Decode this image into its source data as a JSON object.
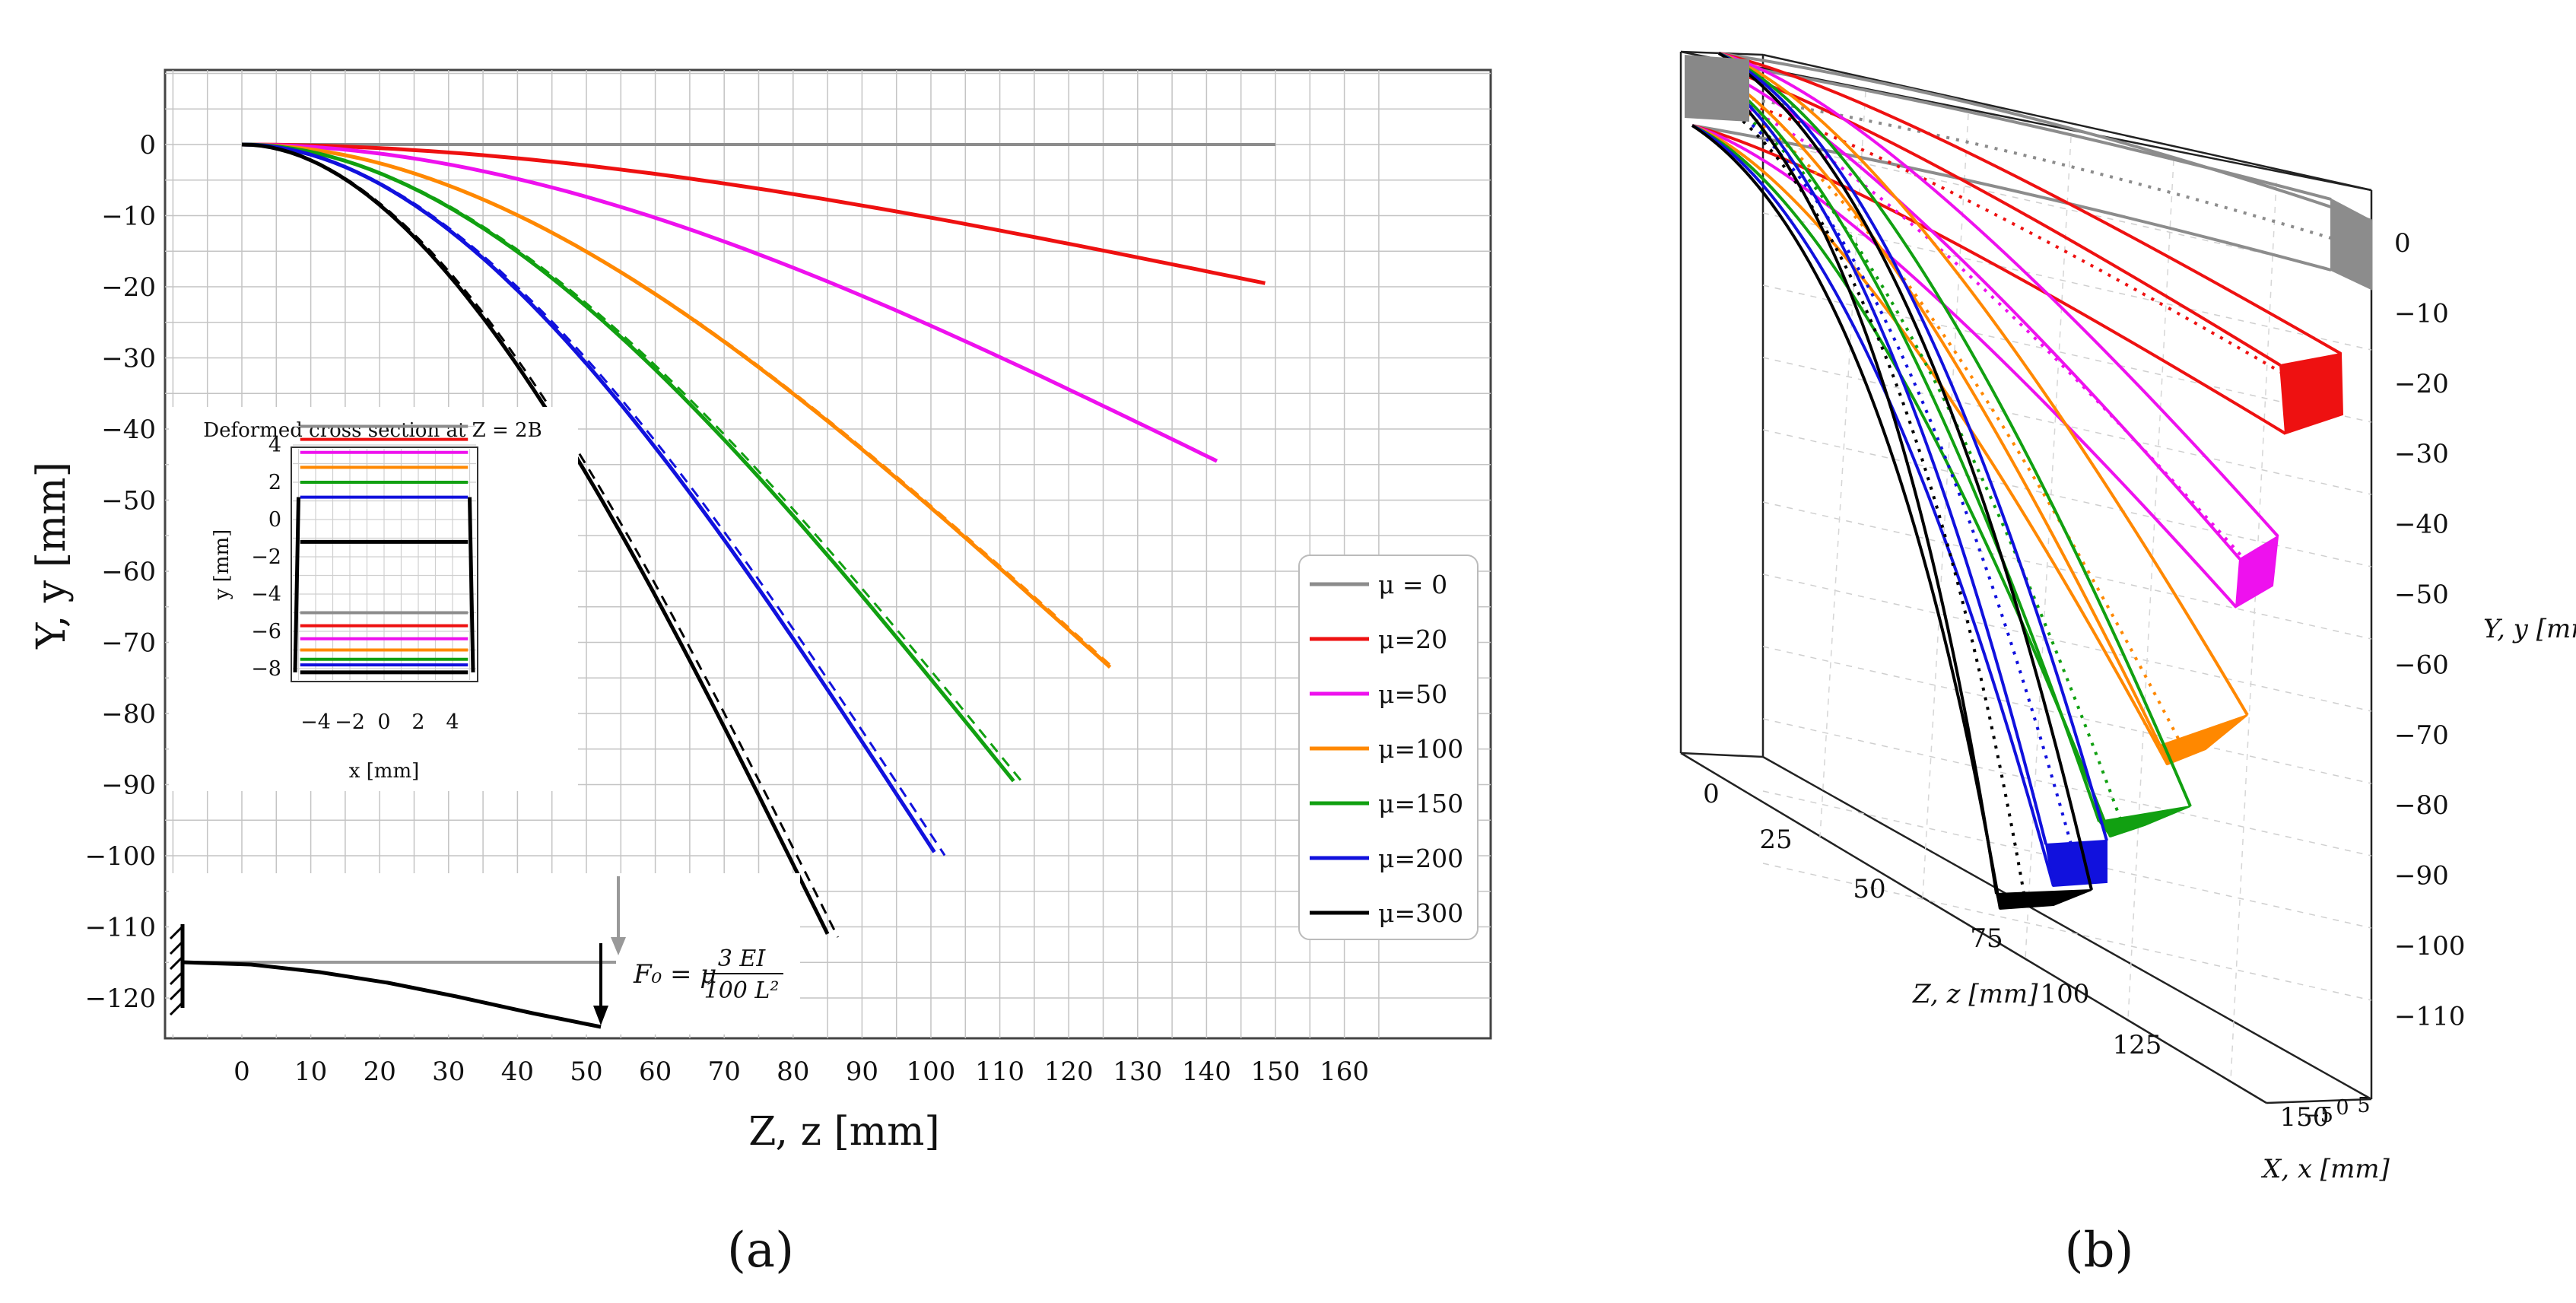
{
  "chart_data": [
    {
      "type": "line",
      "panel_label": "(a)",
      "xlabel": "Z, z  [mm]",
      "ylabel": "Y, y [mm]",
      "xlim": [
        -10,
        165
      ],
      "ylim": [
        -120,
        10
      ],
      "grid": true,
      "x_ticks": [
        0,
        10,
        20,
        30,
        40,
        50,
        60,
        70,
        80,
        90,
        100,
        110,
        120,
        130,
        140,
        150,
        160
      ],
      "y_ticks": [
        0,
        -10,
        -20,
        -30,
        -40,
        -50,
        -60,
        -70,
        -80,
        -90,
        -100,
        -110,
        -120
      ],
      "legend_position": "right",
      "series": [
        {
          "name": "μ = 0",
          "mu": 0,
          "color": "#8c8c8c",
          "tip_z": 150,
          "tip_y": 0
        },
        {
          "name": "μ=20",
          "mu": 20,
          "color": "#ee1111",
          "tip_z": 148.5,
          "tip_y": -19.5
        },
        {
          "name": "μ=50",
          "mu": 50,
          "color": "#ee11ee",
          "tip_z": 141.5,
          "tip_y": -44.5
        },
        {
          "name": "μ=100",
          "mu": 100,
          "color": "#ff8800",
          "tip_z": 126,
          "tip_y": -73.5
        },
        {
          "name": "μ=150",
          "mu": 150,
          "color": "#11a011",
          "tip_z": 112,
          "tip_y": -89.5
        },
        {
          "name": "μ=200",
          "mu": 200,
          "color": "#1111dd",
          "tip_z": 100.5,
          "tip_y": -99.5
        },
        {
          "name": "μ=300",
          "mu": 300,
          "color": "#000000",
          "tip_z": 85,
          "tip_y": -111
        }
      ],
      "inset_cross_section": {
        "title": "Deformed cross section at Z = 2B",
        "xlabel": "x [mm]",
        "ylabel": "y [mm]",
        "x_ticks": [
          -4,
          -2,
          0,
          2,
          4
        ],
        "y_ticks": [
          4,
          2,
          0,
          -2,
          -4,
          -6,
          -8
        ],
        "top_edge_y": [
          5.0,
          4.3,
          3.6,
          2.8,
          2.0,
          1.2,
          -1.2
        ],
        "bottom_edge_y": [
          -5.0,
          -5.7,
          -6.4,
          -7.0,
          -7.5,
          -7.8,
          -8.2
        ]
      },
      "inset_beam": {
        "force_label_lhs": "F₀ = μ",
        "force_numerator": "3 EI",
        "force_denominator": "100 L²"
      }
    },
    {
      "type": "line",
      "panel_label": "(b)",
      "xlabel": "X, x [mm]",
      "ylabel": "Y, y [mm]",
      "zlabel": "Z, z [mm]",
      "y_ticks": [
        0,
        -10,
        -20,
        -30,
        -40,
        -50,
        -60,
        -70,
        -80,
        -90,
        -100,
        -110
      ],
      "z_ticks": [
        0,
        25,
        50,
        75,
        100,
        125,
        150
      ],
      "x_ticks": [
        -5,
        0,
        5
      ]
    }
  ]
}
